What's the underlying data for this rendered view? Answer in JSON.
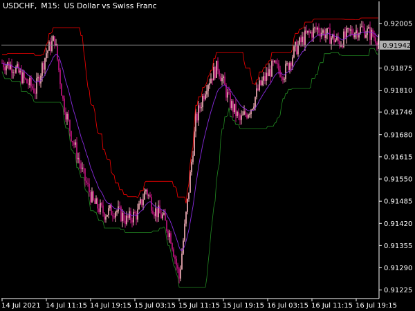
{
  "header": {
    "symbol": "USDCHF,",
    "timeframe": "M15:",
    "description": "US Dollar vs Swiss Franc"
  },
  "colors": {
    "background": "#000000",
    "candle_bull": "#ffb6c1",
    "candle_bear": "#c71585",
    "upper_band": "#ff0000",
    "middle_line": "#8a2be2",
    "lower_band": "#228b22",
    "price_line": "#808080",
    "axis": "#ffffff"
  },
  "chart_data": {
    "type": "candlestick",
    "title": "USDCHF, M15:  US Dollar vs Swiss Franc",
    "current_price": 0.91942,
    "ylim": [
      0.912,
      0.9207
    ],
    "y_ticks": [
      0.92005,
      0.91875,
      0.9181,
      0.91746,
      0.9168,
      0.91615,
      0.9155,
      0.91485,
      0.9142,
      0.91355,
      0.9129,
      0.91225
    ],
    "y_tick_labels": [
      "0.92005",
      "0.91875",
      "0.91810",
      "0.91746",
      "0.91680",
      "0.91615",
      "0.91550",
      "0.91485",
      "0.91420",
      "0.91355",
      "0.91290",
      "0.91225"
    ],
    "x_tick_labels": [
      "14 Jul 2021",
      "14 Jul 11:15",
      "14 Jul 19:15",
      "15 Jul 03:15",
      "15 Jul 11:15",
      "15 Jul 19:15",
      "16 Jul 03:15",
      "16 Jul 11:15",
      "16 Jul 19:15"
    ],
    "x_tick_index": [
      0,
      32,
      64,
      96,
      128,
      160,
      192,
      224,
      256
    ],
    "anchors": [
      [
        0,
        0.9189
      ],
      [
        8,
        0.9188
      ],
      [
        16,
        0.9184
      ],
      [
        24,
        0.9181
      ],
      [
        32,
        0.9192
      ],
      [
        38,
        0.9196
      ],
      [
        44,
        0.9178
      ],
      [
        50,
        0.9168
      ],
      [
        58,
        0.9157
      ],
      [
        66,
        0.9148
      ],
      [
        74,
        0.9145
      ],
      [
        82,
        0.9146
      ],
      [
        90,
        0.9143
      ],
      [
        98,
        0.9145
      ],
      [
        104,
        0.9152
      ],
      [
        110,
        0.9146
      ],
      [
        116,
        0.9144
      ],
      [
        122,
        0.9138
      ],
      [
        128,
        0.9126
      ],
      [
        134,
        0.9148
      ],
      [
        140,
        0.9172
      ],
      [
        148,
        0.9183
      ],
      [
        156,
        0.9188
      ],
      [
        164,
        0.9178
      ],
      [
        172,
        0.9172
      ],
      [
        180,
        0.9176
      ],
      [
        186,
        0.9182
      ],
      [
        196,
        0.9188
      ],
      [
        204,
        0.9186
      ],
      [
        212,
        0.9193
      ],
      [
        220,
        0.9197
      ],
      [
        228,
        0.9199
      ],
      [
        236,
        0.9197
      ],
      [
        244,
        0.9195
      ],
      [
        252,
        0.9198
      ],
      [
        260,
        0.9199
      ],
      [
        272,
        0.9196
      ]
    ],
    "candle_count": 273,
    "bands": {
      "upper": "red",
      "middle": "purple",
      "lower": "green"
    }
  }
}
